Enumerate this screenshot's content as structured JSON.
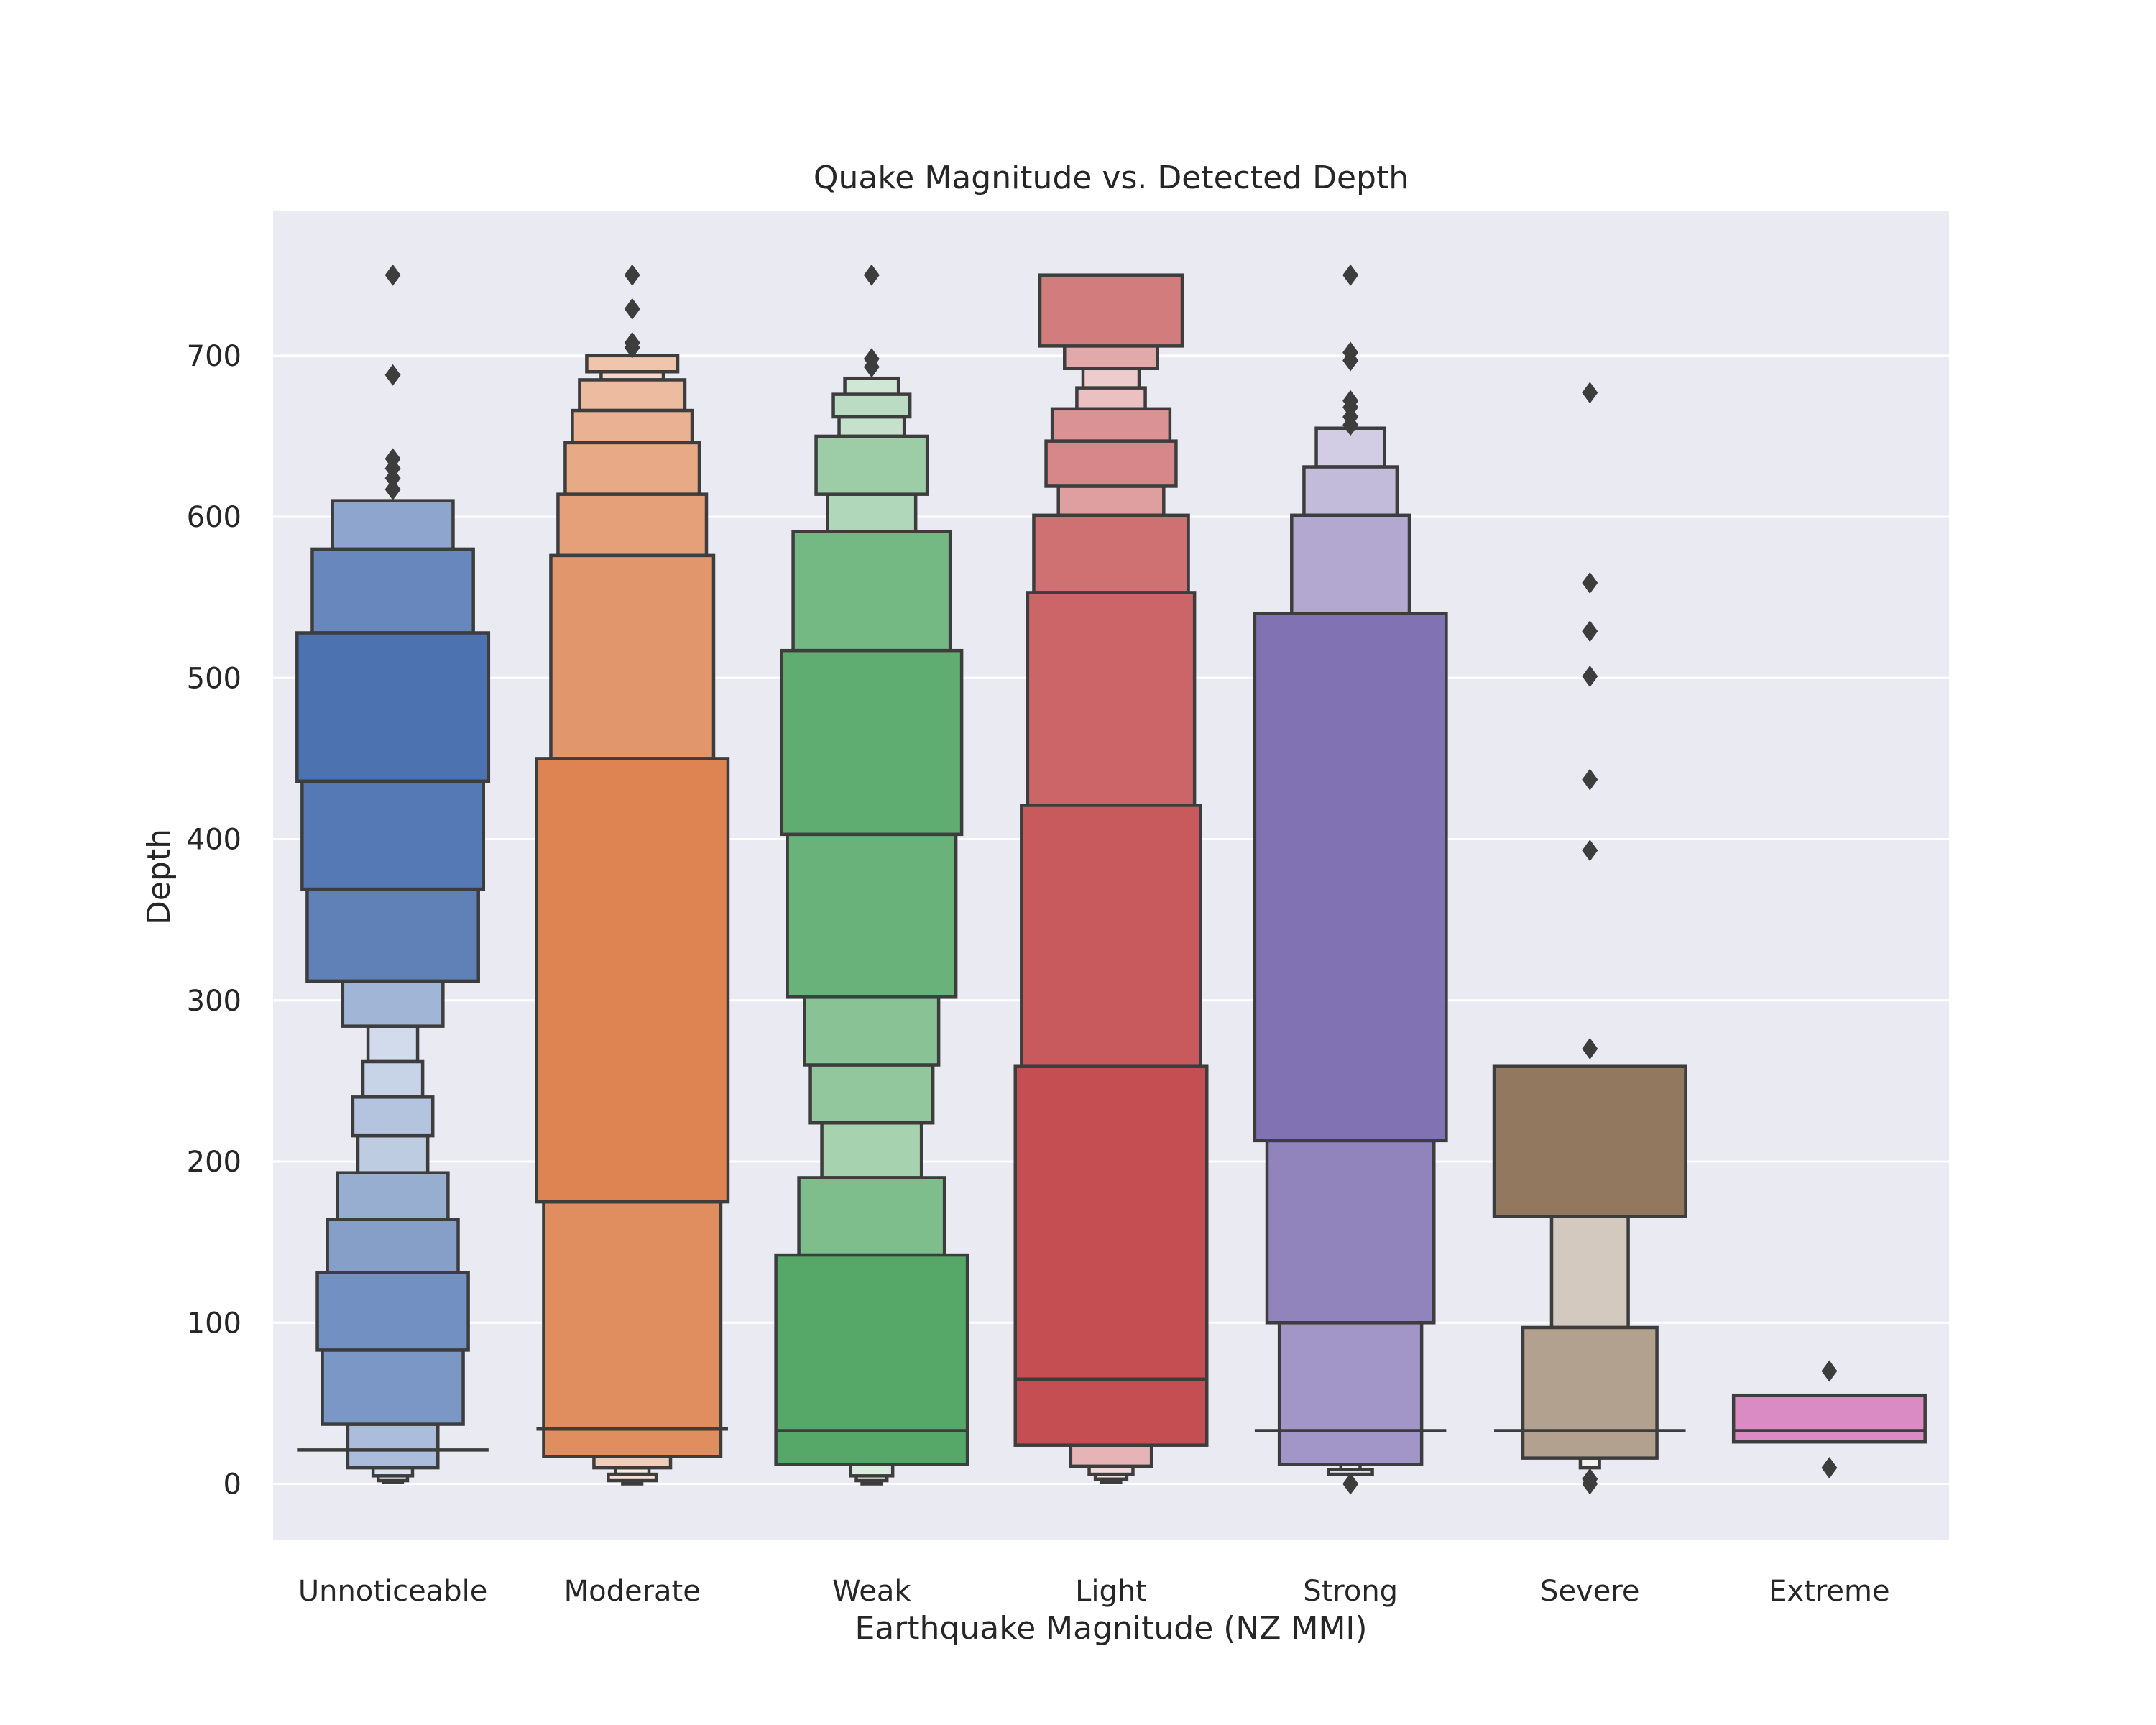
{
  "chart_data": {
    "type": "boxen",
    "title": "Quake Magnitude vs. Detected Depth",
    "xlabel": "Earthquake Magnitude (NZ MMI)",
    "ylabel": "Depth",
    "ylim": [
      -35,
      790
    ],
    "yticks": [
      0,
      100,
      200,
      300,
      400,
      500,
      600,
      700
    ],
    "grid": true,
    "background": "#eaeaf2",
    "categories": [
      "Unnoticeable",
      "Moderate",
      "Weak",
      "Light",
      "Strong",
      "Severe",
      "Extreme"
    ],
    "series": [
      {
        "category": "Unnoticeable",
        "color": "#4c72b0",
        "median": 21,
        "boxes": [
          [
            580,
            610
          ],
          [
            528,
            580
          ],
          [
            436,
            528
          ],
          [
            369,
            436
          ],
          [
            312,
            369
          ],
          [
            284,
            312
          ],
          [
            262,
            284
          ],
          [
            240,
            262
          ],
          [
            216,
            240
          ],
          [
            193,
            216
          ],
          [
            164,
            193
          ],
          [
            131,
            164
          ],
          [
            83,
            131
          ],
          [
            37,
            83
          ],
          [
            10,
            37
          ],
          [
            5,
            10
          ],
          [
            2,
            5
          ],
          [
            1,
            2
          ]
        ],
        "outliers": [
          750,
          688,
          636,
          630,
          624,
          617
        ]
      },
      {
        "category": "Moderate",
        "color": "#dd8452",
        "median": 34,
        "boxes": [
          [
            690,
            700
          ],
          [
            685,
            690
          ],
          [
            666,
            685
          ],
          [
            646,
            666
          ],
          [
            614,
            646
          ],
          [
            576,
            614
          ],
          [
            450,
            576
          ],
          [
            175,
            450
          ],
          [
            17,
            175
          ],
          [
            10,
            17
          ],
          [
            6,
            10
          ],
          [
            2,
            6
          ],
          [
            0,
            2
          ]
        ],
        "outliers": [
          750,
          729,
          708,
          705
        ]
      },
      {
        "category": "Weak",
        "color": "#55a868",
        "median": 33,
        "boxes": [
          [
            676,
            686
          ],
          [
            662,
            676
          ],
          [
            650,
            662
          ],
          [
            614,
            650
          ],
          [
            591,
            614
          ],
          [
            517,
            591
          ],
          [
            403,
            517
          ],
          [
            302,
            403
          ],
          [
            260,
            302
          ],
          [
            224,
            260
          ],
          [
            190,
            224
          ],
          [
            142,
            190
          ],
          [
            12,
            142
          ],
          [
            5,
            12
          ],
          [
            2,
            5
          ],
          [
            0,
            2
          ]
        ],
        "outliers": [
          750,
          698,
          693
        ]
      },
      {
        "category": "Light",
        "color": "#c44e52",
        "median": 65,
        "boxes": [
          [
            706,
            750
          ],
          [
            692,
            706
          ],
          [
            680,
            692
          ],
          [
            667,
            680
          ],
          [
            647,
            667
          ],
          [
            619,
            647
          ],
          [
            601,
            619
          ],
          [
            553,
            601
          ],
          [
            421,
            553
          ],
          [
            259,
            421
          ],
          [
            24,
            259
          ],
          [
            11,
            24
          ],
          [
            6,
            11
          ],
          [
            3,
            6
          ],
          [
            1,
            3
          ]
        ],
        "outliers": []
      },
      {
        "category": "Strong",
        "color": "#8172b3",
        "median": 33,
        "boxes": [
          [
            631,
            655
          ],
          [
            601,
            631
          ],
          [
            540,
            601
          ],
          [
            213,
            540
          ],
          [
            100,
            213
          ],
          [
            12,
            100
          ],
          [
            9,
            12
          ],
          [
            6,
            9
          ]
        ],
        "outliers": [
          750,
          702,
          697,
          672,
          668,
          662,
          657,
          0
        ]
      },
      {
        "category": "Severe",
        "color": "#937860",
        "median": 33,
        "boxes": [
          [
            166,
            259
          ],
          [
            97,
            166
          ],
          [
            16,
            97
          ],
          [
            10,
            16
          ]
        ],
        "outliers": [
          677,
          559,
          529,
          501,
          437,
          393,
          270,
          3,
          0
        ]
      },
      {
        "category": "Extreme",
        "color": "#da8bc3",
        "median": 33,
        "boxes": [
          [
            26,
            55
          ]
        ],
        "outliers": [
          70,
          10
        ]
      }
    ]
  }
}
